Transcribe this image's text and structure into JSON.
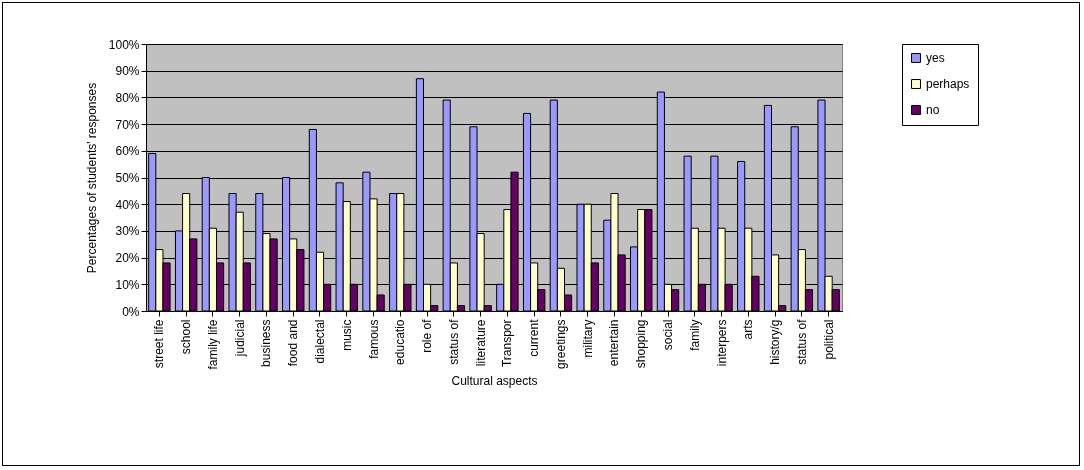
{
  "chart_data": {
    "type": "bar",
    "xlabel": "Cultural aspects",
    "ylabel": "Percentages of students' responses",
    "categories": [
      "street life",
      "school",
      "family life",
      "judicial",
      "business",
      "food and",
      "dialectal",
      "music",
      "famous",
      "educatio",
      "role of",
      "status of",
      "literature",
      "Transpor",
      "current",
      "greetings",
      "military",
      "entertain",
      "shopping",
      "social",
      "family",
      "interpers",
      "arts",
      "history/g",
      "status of",
      "political"
    ],
    "series": [
      {
        "name": "yes",
        "color": "#9999ff",
        "values": [
          59,
          30,
          50,
          44,
          44,
          50,
          68,
          48,
          52,
          44,
          87,
          79,
          69,
          10,
          74,
          79,
          40,
          34,
          24,
          82,
          58,
          58,
          56,
          77,
          69,
          79
        ]
      },
      {
        "name": "perhaps",
        "color": "#ffffcc",
        "values": [
          23,
          44,
          31,
          37,
          29,
          27,
          22,
          41,
          42,
          44,
          10,
          18,
          29,
          38,
          18,
          16,
          40,
          44,
          38,
          10,
          31,
          31,
          31,
          21,
          23,
          13
        ]
      },
      {
        "name": "no",
        "color": "#660066",
        "values": [
          18,
          27,
          18,
          18,
          27,
          23,
          10,
          10,
          6,
          10,
          2,
          2,
          2,
          52,
          8,
          6,
          18,
          21,
          38,
          8,
          10,
          10,
          13,
          2,
          8,
          8
        ]
      }
    ],
    "ylim": [
      0,
      100
    ],
    "yticks": [
      {
        "value": 0,
        "label": "0%"
      },
      {
        "value": 10,
        "label": "10%"
      },
      {
        "value": 20,
        "label": "20%"
      },
      {
        "value": 30,
        "label": "30%"
      },
      {
        "value": 40,
        "label": "40%"
      },
      {
        "value": 50,
        "label": "50%"
      },
      {
        "value": 60,
        "label": "60%"
      },
      {
        "value": 70,
        "label": "70%"
      },
      {
        "value": 80,
        "label": "80%"
      },
      {
        "value": 90,
        "label": "90%"
      },
      {
        "value": 100,
        "label": "100%"
      }
    ],
    "grid": "y",
    "legend": "right"
  }
}
